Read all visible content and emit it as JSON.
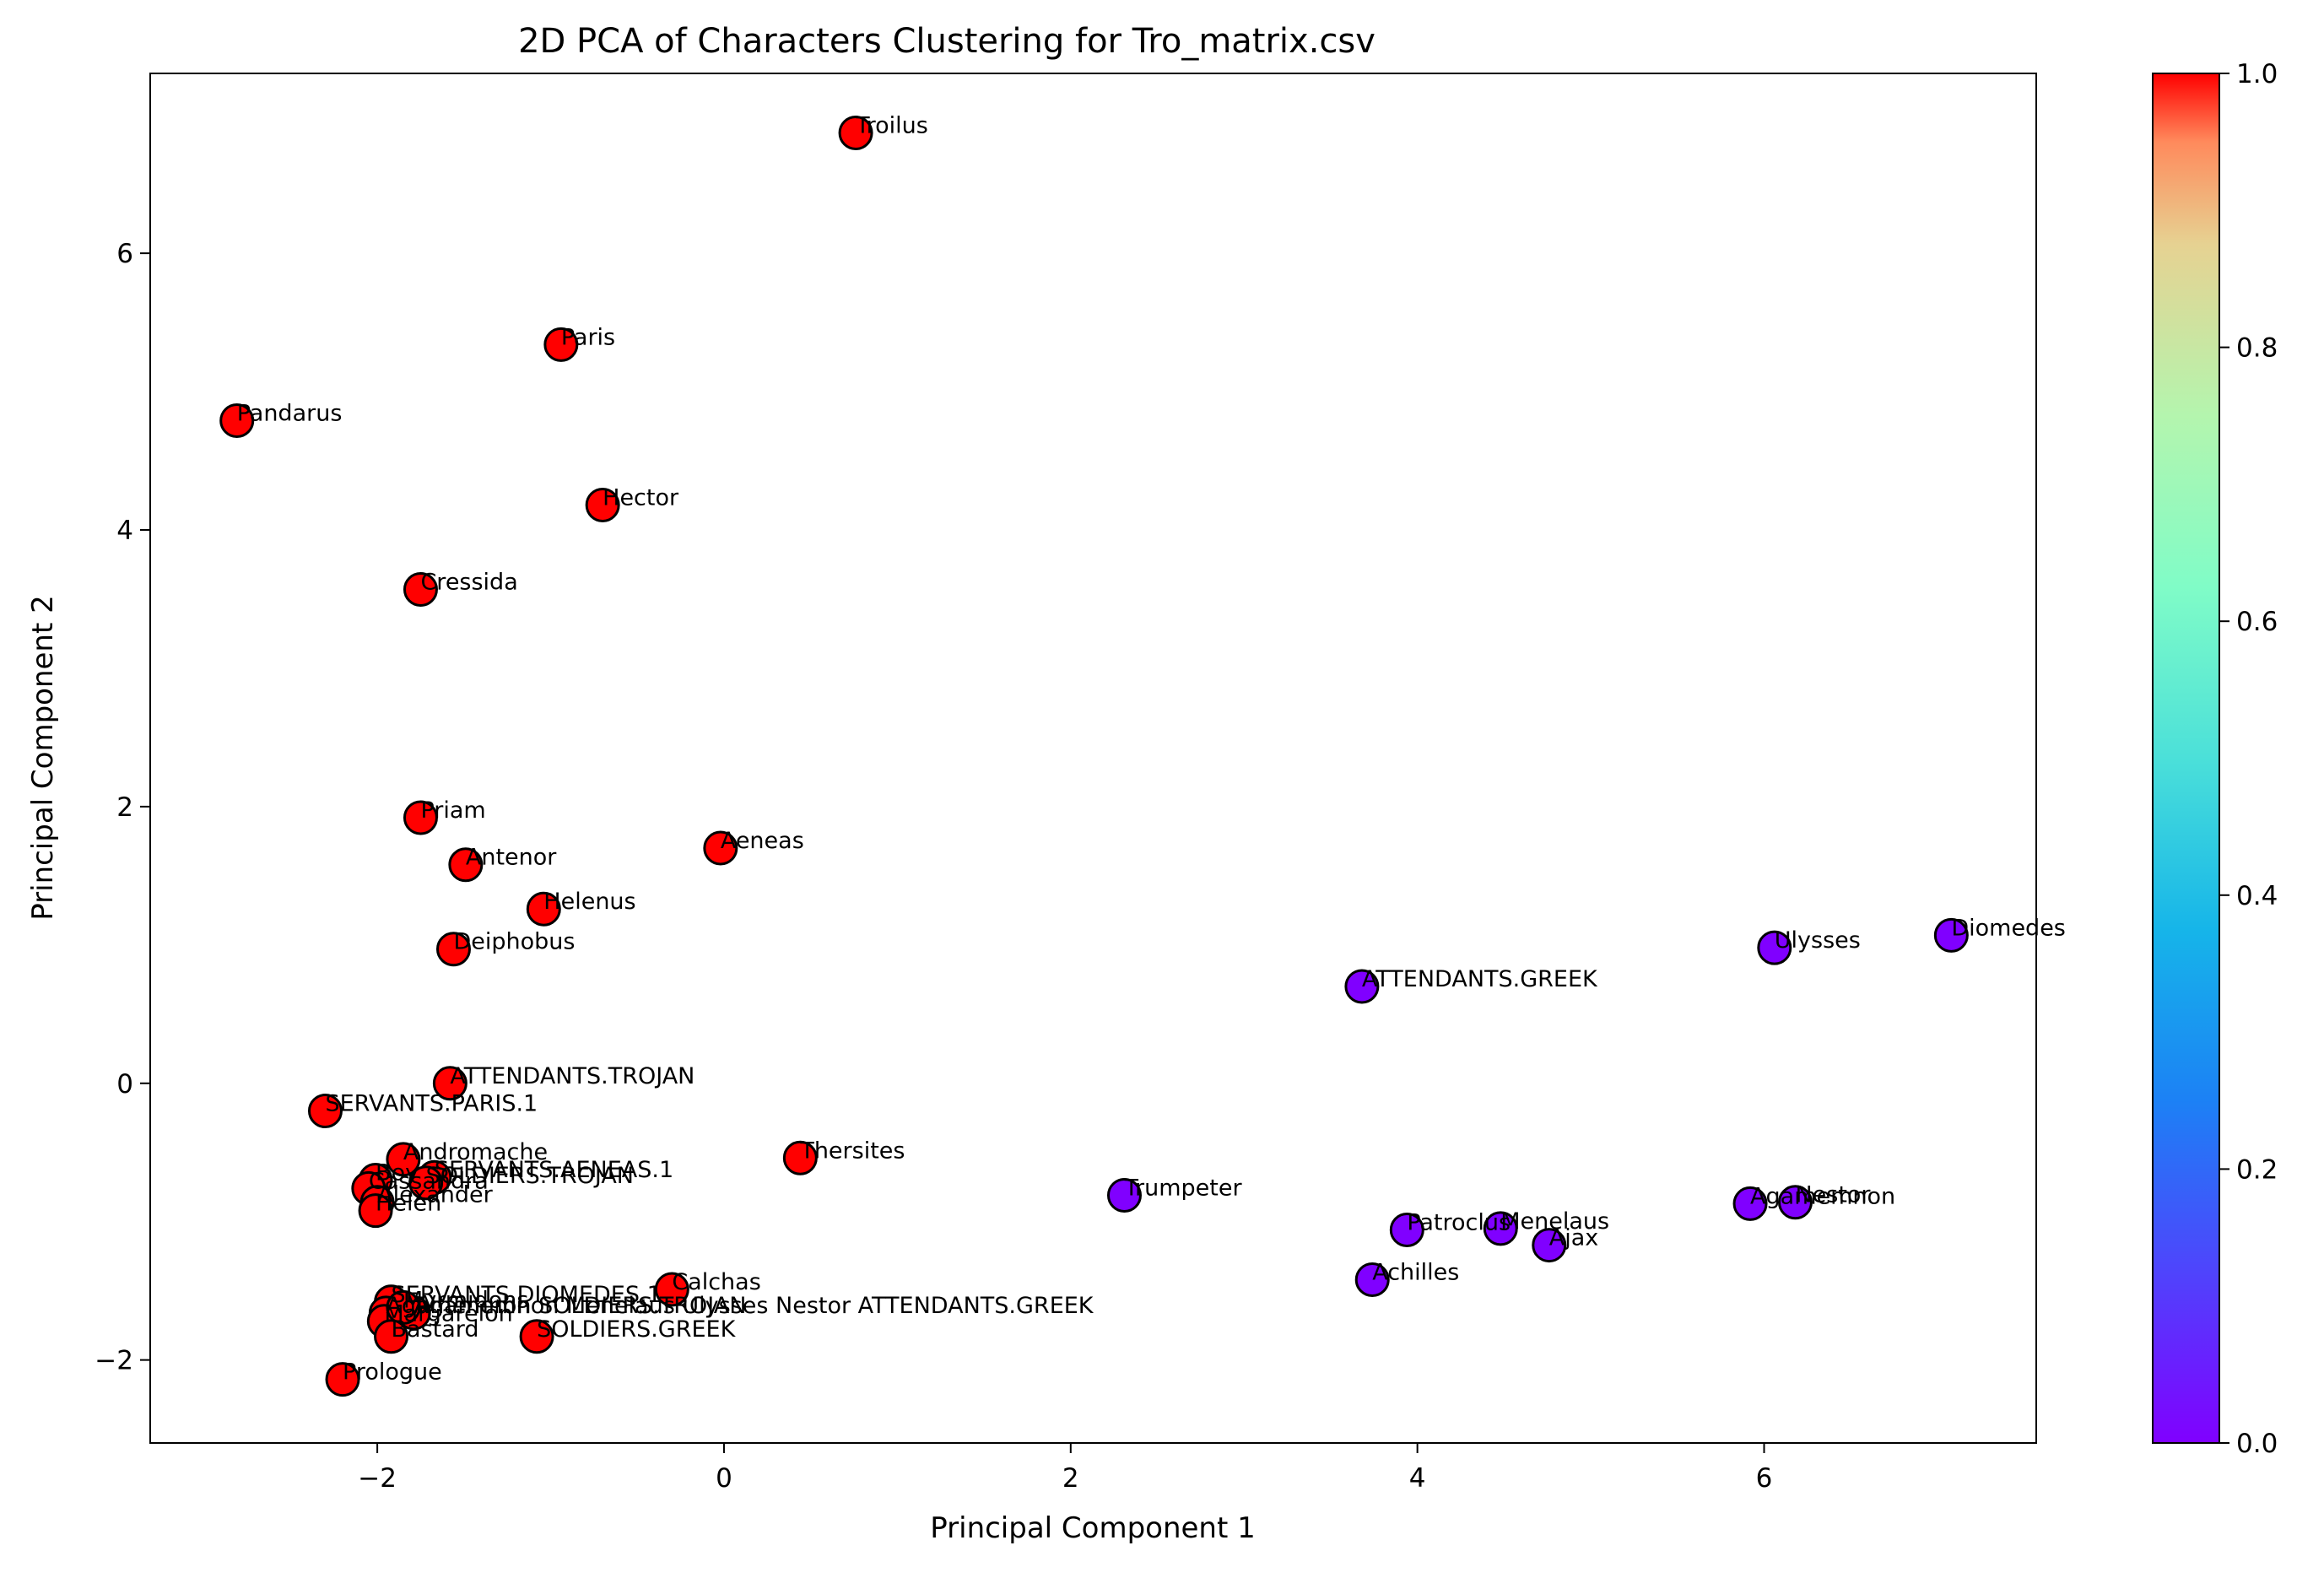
{
  "chart_data": {
    "type": "scatter",
    "title": "2D PCA of Characters Clustering for Tro_matrix.csv",
    "xlabel": "Principal Component 1",
    "ylabel": "Principal Component 2",
    "xlim": [
      -3.31,
      7.57
    ],
    "ylim": [
      -2.6,
      7.3
    ],
    "xticks": [
      -2,
      0,
      2,
      4,
      6
    ],
    "yticks": [
      -2,
      0,
      2,
      4,
      6
    ],
    "grid": false,
    "colorbar": {
      "colormap": "rainbow",
      "range": [
        0.0,
        1.0
      ],
      "ticks": [
        "0.0",
        "0.2",
        "0.4",
        "0.6",
        "0.8",
        "1.0"
      ]
    },
    "colors": {
      "cluster_1": "#ff0000",
      "cluster_0": "#8000ff",
      "marker_edge": "#000000"
    },
    "points": [
      {
        "label": "Troilus",
        "x": 0.76,
        "y": 6.87,
        "c": 1
      },
      {
        "label": "Paris",
        "x": -0.94,
        "y": 5.34,
        "c": 1
      },
      {
        "label": "Pandarus",
        "x": -2.81,
        "y": 4.79,
        "c": 1
      },
      {
        "label": "Hector",
        "x": -0.7,
        "y": 4.18,
        "c": 1
      },
      {
        "label": "Cressida",
        "x": -1.75,
        "y": 3.57,
        "c": 1
      },
      {
        "label": "Priam",
        "x": -1.75,
        "y": 1.92,
        "c": 1
      },
      {
        "label": "Aeneas",
        "x": -0.02,
        "y": 1.7,
        "c": 1
      },
      {
        "label": "Antenor",
        "x": -1.49,
        "y": 1.58,
        "c": 1
      },
      {
        "label": "Helenus",
        "x": -1.04,
        "y": 1.26,
        "c": 1
      },
      {
        "label": "Deiphobus",
        "x": -1.56,
        "y": 0.97,
        "c": 1
      },
      {
        "label": "ATTENDANTS.TROJAN",
        "x": -1.58,
        "y": 0.0,
        "c": 1
      },
      {
        "label": "SERVANTS.PARIS.1",
        "x": -2.3,
        "y": -0.2,
        "c": 1
      },
      {
        "label": "Andromache",
        "x": -1.85,
        "y": -0.55,
        "c": 1
      },
      {
        "label": "SERVANTS.AENEAS.1",
        "x": -1.67,
        "y": -0.68,
        "c": 1
      },
      {
        "label": "Boy",
        "x": -2.01,
        "y": -0.7,
        "c": 1
      },
      {
        "label": "SOLDIERS.TROJAN",
        "x": -1.72,
        "y": -0.72,
        "c": 1
      },
      {
        "label": "Cassandra",
        "x": -2.05,
        "y": -0.76,
        "c": 1
      },
      {
        "label": "Alexander",
        "x": -2.0,
        "y": -0.86,
        "c": 1
      },
      {
        "label": "Helen",
        "x": -2.01,
        "y": -0.92,
        "c": 1
      },
      {
        "label": "Thersites",
        "x": 0.44,
        "y": -0.54,
        "c": 1
      },
      {
        "label": "Calchas",
        "x": -0.3,
        "y": -1.49,
        "c": 1
      },
      {
        "label": "SERVANTS.DIOMEDES.1",
        "x": -1.92,
        "y": -1.58,
        "c": 1
      },
      {
        "label": "Agamemnon Menelaus Ulysses Nestor ATTENDANTS.GREEK",
        "x": -1.79,
        "y": -1.66,
        "c": 1
      },
      {
        "label": "Agamemnon SOLDIERS.TROJAN",
        "x": -1.95,
        "y": -1.66,
        "c": 1
      },
      {
        "label": "Margarelon",
        "x": -1.96,
        "y": -1.72,
        "c": 1
      },
      {
        "label": "Myrmidons",
        "x": -1.85,
        "y": -1.62,
        "c": 1
      },
      {
        "label": "Bastard",
        "x": -1.92,
        "y": -1.83,
        "c": 1
      },
      {
        "label": "SOLDIERS.GREEK",
        "x": -1.08,
        "y": -1.83,
        "c": 1
      },
      {
        "label": "Prologue",
        "x": -2.2,
        "y": -2.14,
        "c": 1
      },
      {
        "label": "Diomedes",
        "x": 7.08,
        "y": 1.07,
        "c": 0
      },
      {
        "label": "Ulysses",
        "x": 6.06,
        "y": 0.98,
        "c": 0
      },
      {
        "label": "ATTENDANTS.GREEK",
        "x": 3.68,
        "y": 0.7,
        "c": 0
      },
      {
        "label": "Trumpeter",
        "x": 2.31,
        "y": -0.81,
        "c": 0
      },
      {
        "label": "Agamemnon",
        "x": 5.92,
        "y": -0.87,
        "c": 0
      },
      {
        "label": "Nestor",
        "x": 6.18,
        "y": -0.86,
        "c": 0
      },
      {
        "label": "Patroclus",
        "x": 3.94,
        "y": -1.06,
        "c": 0
      },
      {
        "label": "Menelaus",
        "x": 4.48,
        "y": -1.05,
        "c": 0
      },
      {
        "label": "Ajax",
        "x": 4.76,
        "y": -1.17,
        "c": 0
      },
      {
        "label": "Achilles",
        "x": 3.74,
        "y": -1.42,
        "c": 0
      }
    ]
  }
}
